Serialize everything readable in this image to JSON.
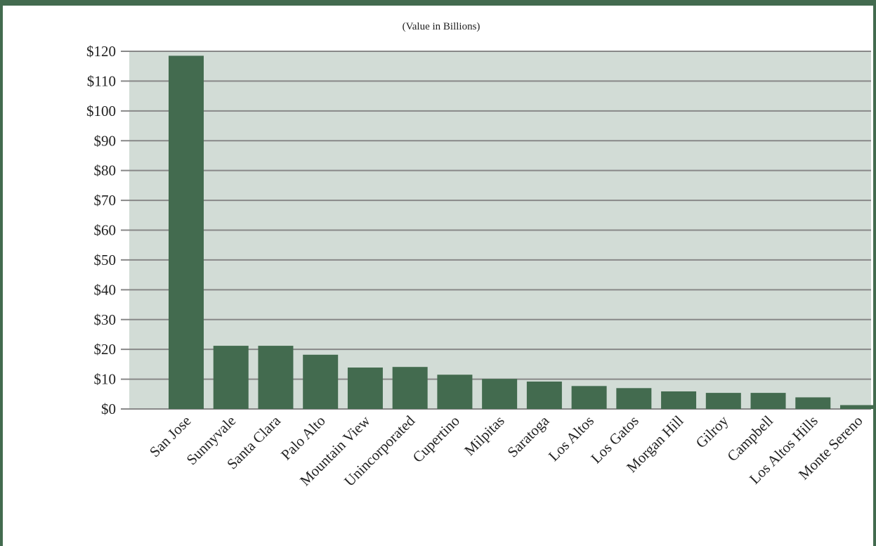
{
  "chart_data": {
    "type": "bar",
    "title": "",
    "subtitle": "(Value in Billions)",
    "xlabel": "",
    "ylabel": "",
    "categories": [
      "San Jose",
      "Sunnyvale",
      "Santa Clara",
      "Palo Alto",
      "Mountain View",
      "Unincorporated",
      "Cupertino",
      "Milpitas",
      "Saratoga",
      "Los Altos",
      "Los Gatos",
      "Morgan Hill",
      "Gilroy",
      "Campbell",
      "Los Altos Hills",
      "Monte Sereno"
    ],
    "values": [
      118.5,
      21.2,
      21.2,
      18.2,
      13.9,
      14.1,
      11.5,
      10.1,
      9.2,
      7.7,
      7.0,
      5.9,
      5.4,
      5.4,
      3.9,
      1.3
    ],
    "ylim": [
      0,
      120
    ],
    "yticks": [
      0,
      10,
      20,
      30,
      40,
      50,
      60,
      70,
      80,
      90,
      100,
      110,
      120
    ],
    "ytick_labels": [
      "$0",
      "$10",
      "$20",
      "$30",
      "$40",
      "$50",
      "$60",
      "$70",
      "$80",
      "$90",
      "$100",
      "$110",
      "$120"
    ],
    "grid": true,
    "legend": "none"
  },
  "colors": {
    "bar": "#436b4f",
    "plot_bg": "#d2dcd6",
    "gridline": "#888888",
    "frame": "#436b4f"
  }
}
